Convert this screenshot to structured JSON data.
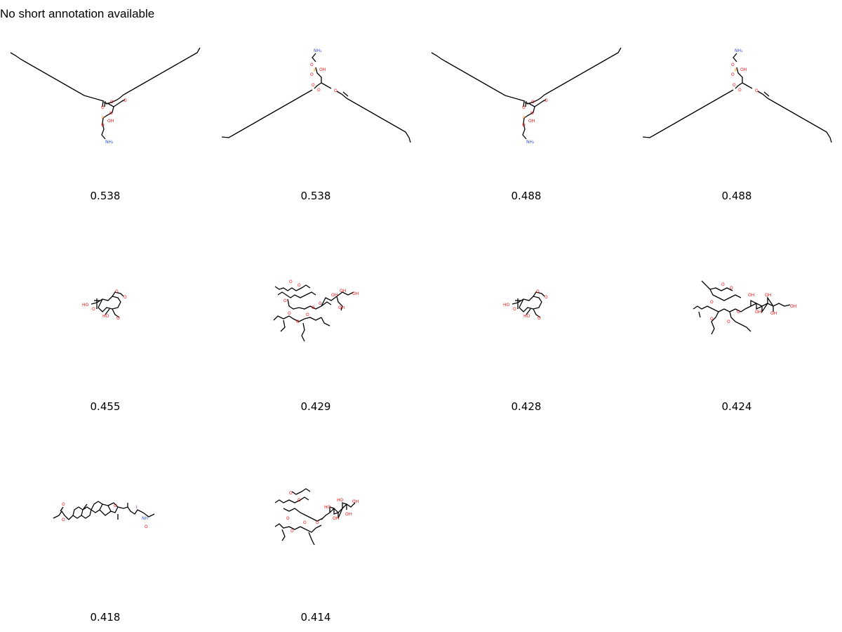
{
  "annotation": "No short annotation available",
  "molecules": [
    {
      "index": 1,
      "score": "0.538",
      "atom_labels": [
        "O",
        "O",
        "O",
        "O",
        "P",
        "OH",
        "O",
        "NH₂"
      ]
    },
    {
      "index": 2,
      "score": "0.538",
      "atom_labels": [
        "NH₂",
        "O",
        "P",
        "OH",
        "O",
        "O",
        "O",
        "O"
      ]
    },
    {
      "index": 3,
      "score": "0.488",
      "atom_labels": [
        "O",
        "O",
        "O",
        "O",
        "P",
        "OH",
        "O",
        "NH₂"
      ]
    },
    {
      "index": 4,
      "score": "0.488",
      "atom_labels": [
        "NH₂",
        "O",
        "P",
        "OH",
        "O",
        "O",
        "O",
        "O"
      ]
    },
    {
      "index": 5,
      "score": "0.455",
      "atom_labels": [
        "HO",
        "O",
        "O",
        "HO",
        "O",
        "O"
      ]
    },
    {
      "index": 6,
      "score": "0.429",
      "atom_labels": [
        "O",
        "O",
        "O",
        "O",
        "OH",
        "OH",
        "OH",
        "OH",
        "O",
        "O",
        "O",
        "O"
      ]
    },
    {
      "index": 7,
      "score": "0.428",
      "atom_labels": [
        "HO",
        "O",
        "O",
        "HO",
        "O",
        "O"
      ]
    },
    {
      "index": 8,
      "score": "0.424",
      "atom_labels": [
        "O",
        "O",
        "O",
        "O",
        "OH",
        "OH",
        "OH",
        "OH",
        "OH",
        "O",
        "O"
      ]
    },
    {
      "index": 9,
      "score": "0.418",
      "atom_labels": [
        "O",
        "O",
        "O",
        "I",
        "NH",
        "O"
      ]
    },
    {
      "index": 10,
      "score": "0.414",
      "atom_labels": [
        "O",
        "O",
        "O",
        "O",
        "HO",
        "OH",
        "HO",
        "OH",
        "OH",
        "O",
        "O"
      ]
    }
  ],
  "colors": {
    "bond": "#000000",
    "oxygen": "#ff0d0d",
    "nitrogen": "#3050f8",
    "phosphorus": "#ff8000",
    "iodine": "#940094"
  }
}
